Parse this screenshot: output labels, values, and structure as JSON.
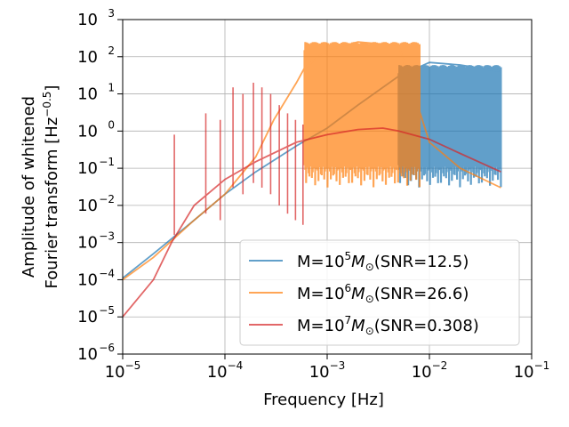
{
  "chart_data": {
    "type": "line",
    "title": "",
    "xlabel": "Frequency [Hz]",
    "ylabel_line1": "Amplitude of whitened",
    "ylabel_line2": "Fourier transform [Hz",
    "ylabel_line2_exp": "−0.5",
    "ylabel_line2_end": "]",
    "xscale": "log",
    "yscale": "log",
    "xlim": [
      1e-05,
      0.1
    ],
    "ylim": [
      1e-06,
      1000
    ],
    "grid": true,
    "legend_position": "lower-right",
    "x_ticks": [
      {
        "value": 1e-05,
        "base": "10",
        "exp": "−5"
      },
      {
        "value": 0.0001,
        "base": "10",
        "exp": "−4"
      },
      {
        "value": 0.001,
        "base": "10",
        "exp": "−3"
      },
      {
        "value": 0.01,
        "base": "10",
        "exp": "−2"
      },
      {
        "value": 0.1,
        "base": "10",
        "exp": "−1"
      }
    ],
    "y_ticks": [
      {
        "value": 1000,
        "base": "10",
        "exp": "3"
      },
      {
        "value": 100,
        "base": "10",
        "exp": "2"
      },
      {
        "value": 10,
        "base": "10",
        "exp": "1"
      },
      {
        "value": 1,
        "base": "10",
        "exp": "0"
      },
      {
        "value": 0.1,
        "base": "10",
        "exp": "−1"
      },
      {
        "value": 0.01,
        "base": "10",
        "exp": "−2"
      },
      {
        "value": 0.001,
        "base": "10",
        "exp": "−3"
      },
      {
        "value": 0.0001,
        "base": "10",
        "exp": "−4"
      },
      {
        "value": 1e-05,
        "base": "10",
        "exp": "−5"
      },
      {
        "value": 1e-06,
        "base": "10",
        "exp": "−6"
      }
    ],
    "series": [
      {
        "name": "M=10^5 M☉ (SNR=12.5)",
        "legend_pre": "M=10",
        "legend_exp": "5",
        "legend_post": "(SNR=12.5)",
        "color": "#1f77b4",
        "opacity": 0.7,
        "x": [
          1e-05,
          2e-05,
          5e-05,
          0.0001,
          0.0002,
          0.0005,
          0.001,
          0.002,
          0.005,
          0.01,
          0.02,
          0.05
        ],
        "y": [
          0.00011,
          0.0005,
          0.004,
          0.02,
          0.08,
          0.4,
          1.2,
          5,
          30,
          70,
          60,
          40
        ],
        "band": {
          "x_start": 0.005,
          "x_end": 0.05,
          "y_high": 60,
          "y_low": 0.03
        }
      },
      {
        "name": "M=10^6 M☉ (SNR=26.6)",
        "legend_pre": "M=10",
        "legend_exp": "6",
        "legend_post": "(SNR=26.6)",
        "color": "#ff7f0e",
        "opacity": 0.7,
        "x": [
          1e-05,
          2e-05,
          5e-05,
          0.0001,
          0.0002,
          0.0003,
          0.0005,
          0.0006,
          0.001,
          0.002,
          0.005,
          0.01,
          0.02,
          0.05
        ],
        "y": [
          0.0001,
          0.0004,
          0.004,
          0.02,
          0.2,
          2,
          20,
          50,
          150,
          250,
          200,
          0.5,
          0.1,
          0.03
        ],
        "band": {
          "x_start": 0.0006,
          "x_end": 0.008,
          "y_high": 250,
          "y_low": 0.03
        }
      },
      {
        "name": "M=10^7 M☉ (SNR=0.308)",
        "legend_pre": "M=10",
        "legend_exp": "7",
        "legend_post": "(SNR=0.308)",
        "color": "#d62728",
        "opacity": 0.7,
        "x": [
          1e-05,
          2e-05,
          3e-05,
          5e-05,
          0.0001,
          0.0002,
          0.0005,
          0.001,
          0.002,
          0.0035,
          0.005,
          0.01,
          0.02,
          0.05
        ],
        "y": [
          1e-05,
          0.0001,
          0.001,
          0.01,
          0.05,
          0.15,
          0.5,
          0.8,
          1.1,
          1.2,
          1.0,
          0.6,
          0.25,
          0.08
        ],
        "peaks_x": [
          3.2e-05,
          6.5e-05,
          9e-05,
          0.00012,
          0.00015,
          0.00019,
          0.00023,
          0.00028,
          0.00034,
          0.00041,
          0.00049,
          0.00058
        ],
        "peaks_y": [
          0.8,
          3,
          2,
          15,
          10,
          20,
          15,
          10,
          5,
          3,
          2,
          1.5
        ]
      }
    ]
  }
}
